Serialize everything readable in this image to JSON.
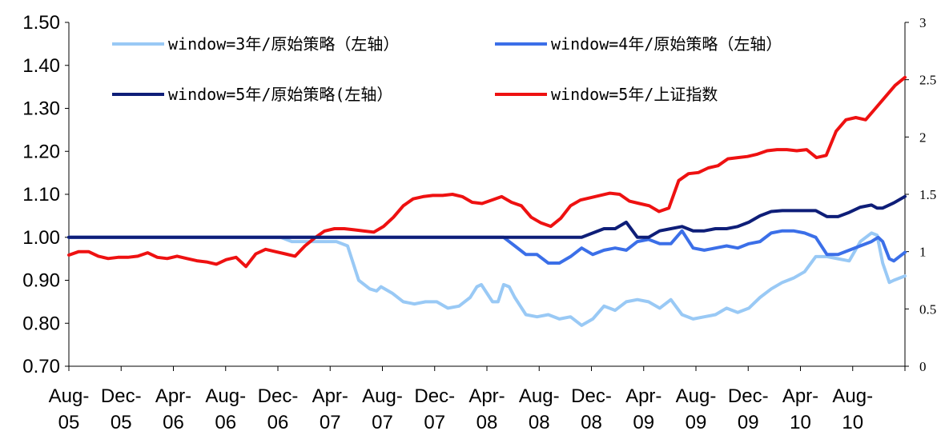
{
  "chart_data": {
    "type": "line",
    "title": "",
    "x_tick_labels": [
      [
        "Aug-",
        "05"
      ],
      [
        "Dec-",
        "05"
      ],
      [
        "Apr-",
        "06"
      ],
      [
        "Aug-",
        "06"
      ],
      [
        "Dec-",
        "06"
      ],
      [
        "Apr-",
        "07"
      ],
      [
        "Aug-",
        "07"
      ],
      [
        "Dec-",
        "07"
      ],
      [
        "Apr-",
        "08"
      ],
      [
        "Aug-",
        "08"
      ],
      [
        "Dec-",
        "08"
      ],
      [
        "Apr-",
        "09"
      ],
      [
        "Aug-",
        "09"
      ],
      [
        "Dec-",
        "09"
      ],
      [
        "Apr-",
        "10"
      ],
      [
        "Aug-",
        "10"
      ]
    ],
    "x_range_months": [
      0,
      64
    ],
    "y_left": {
      "ylim": [
        0.7,
        1.5
      ],
      "ticks": [
        "0.70",
        "0.80",
        "0.90",
        "1.00",
        "1.10",
        "1.20",
        "1.30",
        "1.40",
        "1.50"
      ]
    },
    "y_right": {
      "ylim": [
        0,
        3
      ],
      "ticks": [
        "0",
        "0.5",
        "1",
        "1.5",
        "2",
        "2.5",
        "3"
      ]
    },
    "legend_position": "top",
    "series": [
      {
        "name": "window=3年/原始策略（左轴）",
        "axis": "left",
        "color": "#99c9f5",
        "points": [
          [
            0,
            1.0
          ],
          [
            19,
            1.0
          ],
          [
            20,
            0.99
          ],
          [
            22,
            0.99
          ],
          [
            24,
            0.99
          ],
          [
            25,
            0.98
          ],
          [
            26,
            0.9
          ],
          [
            27,
            0.88
          ],
          [
            27.6,
            0.875
          ],
          [
            28,
            0.885
          ],
          [
            29,
            0.87
          ],
          [
            30,
            0.85
          ],
          [
            31,
            0.845
          ],
          [
            32,
            0.85
          ],
          [
            33,
            0.85
          ],
          [
            34,
            0.835
          ],
          [
            35,
            0.84
          ],
          [
            36,
            0.86
          ],
          [
            36.6,
            0.885
          ],
          [
            37,
            0.89
          ],
          [
            38,
            0.85
          ],
          [
            38.5,
            0.85
          ],
          [
            39,
            0.89
          ],
          [
            39.5,
            0.885
          ],
          [
            40,
            0.86
          ],
          [
            41,
            0.82
          ],
          [
            42,
            0.815
          ],
          [
            43,
            0.82
          ],
          [
            44,
            0.81
          ],
          [
            45,
            0.815
          ],
          [
            46,
            0.795
          ],
          [
            47,
            0.81
          ],
          [
            48,
            0.84
          ],
          [
            49,
            0.83
          ],
          [
            50,
            0.85
          ],
          [
            51,
            0.855
          ],
          [
            52,
            0.85
          ],
          [
            53,
            0.835
          ],
          [
            54,
            0.855
          ],
          [
            55,
            0.82
          ],
          [
            56,
            0.81
          ],
          [
            57,
            0.815
          ],
          [
            58,
            0.82
          ],
          [
            59,
            0.835
          ],
          [
            60,
            0.825
          ],
          [
            61,
            0.835
          ],
          [
            62,
            0.86
          ],
          [
            63,
            0.88
          ],
          [
            64,
            0.895
          ],
          [
            65,
            0.905
          ],
          [
            66,
            0.92
          ],
          [
            67,
            0.955
          ],
          [
            68,
            0.955
          ],
          [
            69,
            0.95
          ],
          [
            70,
            0.945
          ],
          [
            71,
            0.99
          ],
          [
            72,
            1.01
          ],
          [
            72.5,
            1.005
          ],
          [
            73,
            0.94
          ],
          [
            73.6,
            0.895
          ],
          [
            74,
            0.9
          ],
          [
            75,
            0.91
          ]
        ]
      },
      {
        "name": "window=4年/原始策略（左轴）",
        "axis": "left",
        "color": "#3b6fe8",
        "points": [
          [
            0,
            1.0
          ],
          [
            39,
            1.0
          ],
          [
            40,
            0.98
          ],
          [
            41,
            0.96
          ],
          [
            42,
            0.96
          ],
          [
            43,
            0.94
          ],
          [
            44,
            0.94
          ],
          [
            45,
            0.955
          ],
          [
            46,
            0.975
          ],
          [
            47,
            0.96
          ],
          [
            48,
            0.97
          ],
          [
            49,
            0.975
          ],
          [
            50,
            0.97
          ],
          [
            51,
            0.99
          ],
          [
            52,
            0.995
          ],
          [
            53,
            0.985
          ],
          [
            54,
            0.985
          ],
          [
            55,
            1.015
          ],
          [
            56,
            0.975
          ],
          [
            57,
            0.97
          ],
          [
            58,
            0.975
          ],
          [
            59,
            0.98
          ],
          [
            60,
            0.975
          ],
          [
            61,
            0.985
          ],
          [
            62,
            0.99
          ],
          [
            63,
            1.01
          ],
          [
            64,
            1.015
          ],
          [
            65,
            1.015
          ],
          [
            66,
            1.01
          ],
          [
            67,
            1.0
          ],
          [
            68,
            0.96
          ],
          [
            69,
            0.96
          ],
          [
            70,
            0.97
          ],
          [
            71,
            0.98
          ],
          [
            72,
            0.99
          ],
          [
            72.6,
            1.0
          ],
          [
            73,
            0.99
          ],
          [
            73.6,
            0.95
          ],
          [
            74,
            0.945
          ],
          [
            75,
            0.965
          ]
        ]
      },
      {
        "name": "window=5年/原始策略(左轴）",
        "axis": "left",
        "color": "#0e1e78",
        "points": [
          [
            0,
            1.0
          ],
          [
            46,
            1.0
          ],
          [
            47,
            1.01
          ],
          [
            48,
            1.02
          ],
          [
            49,
            1.02
          ],
          [
            50,
            1.035
          ],
          [
            51,
            1.0
          ],
          [
            52,
            1.0
          ],
          [
            53,
            1.015
          ],
          [
            54,
            1.02
          ],
          [
            55,
            1.025
          ],
          [
            56,
            1.015
          ],
          [
            57,
            1.015
          ],
          [
            58,
            1.02
          ],
          [
            59,
            1.02
          ],
          [
            60,
            1.025
          ],
          [
            61,
            1.035
          ],
          [
            62,
            1.05
          ],
          [
            63,
            1.06
          ],
          [
            64,
            1.062
          ],
          [
            65,
            1.062
          ],
          [
            66,
            1.062
          ],
          [
            67,
            1.062
          ],
          [
            68,
            1.048
          ],
          [
            69,
            1.048
          ],
          [
            70,
            1.058
          ],
          [
            71,
            1.07
          ],
          [
            72,
            1.075
          ],
          [
            72.5,
            1.068
          ],
          [
            73,
            1.068
          ],
          [
            74,
            1.08
          ],
          [
            75,
            1.095
          ]
        ]
      },
      {
        "name": "window=5年/上证指数",
        "axis": "right",
        "color": "#ee1111",
        "points": [
          [
            0,
            0.97
          ],
          [
            1,
            1.0
          ],
          [
            2,
            1.0
          ],
          [
            3,
            0.96
          ],
          [
            4,
            0.94
          ],
          [
            5,
            0.95
          ],
          [
            6,
            0.95
          ],
          [
            7,
            0.96
          ],
          [
            8,
            0.99
          ],
          [
            9,
            0.95
          ],
          [
            10,
            0.94
          ],
          [
            11,
            0.96
          ],
          [
            12,
            0.94
          ],
          [
            13,
            0.92
          ],
          [
            14,
            0.91
          ],
          [
            15,
            0.89
          ],
          [
            16,
            0.93
          ],
          [
            17,
            0.95
          ],
          [
            18,
            0.87
          ],
          [
            19,
            0.98
          ],
          [
            20,
            1.02
          ],
          [
            21,
            1.0
          ],
          [
            22,
            0.98
          ],
          [
            23,
            0.96
          ],
          [
            24,
            1.05
          ],
          [
            25,
            1.12
          ],
          [
            26,
            1.18
          ],
          [
            27,
            1.2
          ],
          [
            28,
            1.2
          ],
          [
            29,
            1.19
          ],
          [
            30,
            1.18
          ],
          [
            31,
            1.17
          ],
          [
            32,
            1.22
          ],
          [
            33,
            1.3
          ],
          [
            34,
            1.4
          ],
          [
            35,
            1.46
          ],
          [
            36,
            1.48
          ],
          [
            37,
            1.49
          ],
          [
            38,
            1.49
          ],
          [
            39,
            1.5
          ],
          [
            40,
            1.48
          ],
          [
            41,
            1.43
          ],
          [
            42,
            1.42
          ],
          [
            43,
            1.45
          ],
          [
            44,
            1.48
          ],
          [
            45,
            1.43
          ],
          [
            46,
            1.4
          ],
          [
            47,
            1.3
          ],
          [
            48,
            1.25
          ],
          [
            49,
            1.22
          ],
          [
            50,
            1.29
          ],
          [
            51,
            1.4
          ],
          [
            52,
            1.45
          ],
          [
            53,
            1.47
          ],
          [
            54,
            1.49
          ],
          [
            55,
            1.51
          ],
          [
            56,
            1.5
          ],
          [
            57,
            1.44
          ],
          [
            58,
            1.42
          ],
          [
            59,
            1.4
          ],
          [
            60,
            1.35
          ],
          [
            61,
            1.38
          ],
          [
            62,
            1.62
          ],
          [
            63,
            1.68
          ],
          [
            64,
            1.69
          ],
          [
            65,
            1.73
          ],
          [
            66,
            1.75
          ],
          [
            67,
            1.81
          ],
          [
            68,
            1.82
          ],
          [
            69,
            1.83
          ],
          [
            70,
            1.85
          ],
          [
            71,
            1.88
          ],
          [
            72,
            1.89
          ],
          [
            73,
            1.89
          ],
          [
            74,
            1.88
          ],
          [
            75,
            1.89
          ],
          [
            76,
            1.82
          ],
          [
            77,
            1.84
          ],
          [
            78,
            2.05
          ],
          [
            79,
            2.15
          ],
          [
            80,
            2.17
          ],
          [
            81,
            2.15
          ],
          [
            82,
            2.25
          ],
          [
            83,
            2.35
          ],
          [
            84,
            2.45
          ],
          [
            85,
            2.52
          ]
        ]
      }
    ]
  }
}
